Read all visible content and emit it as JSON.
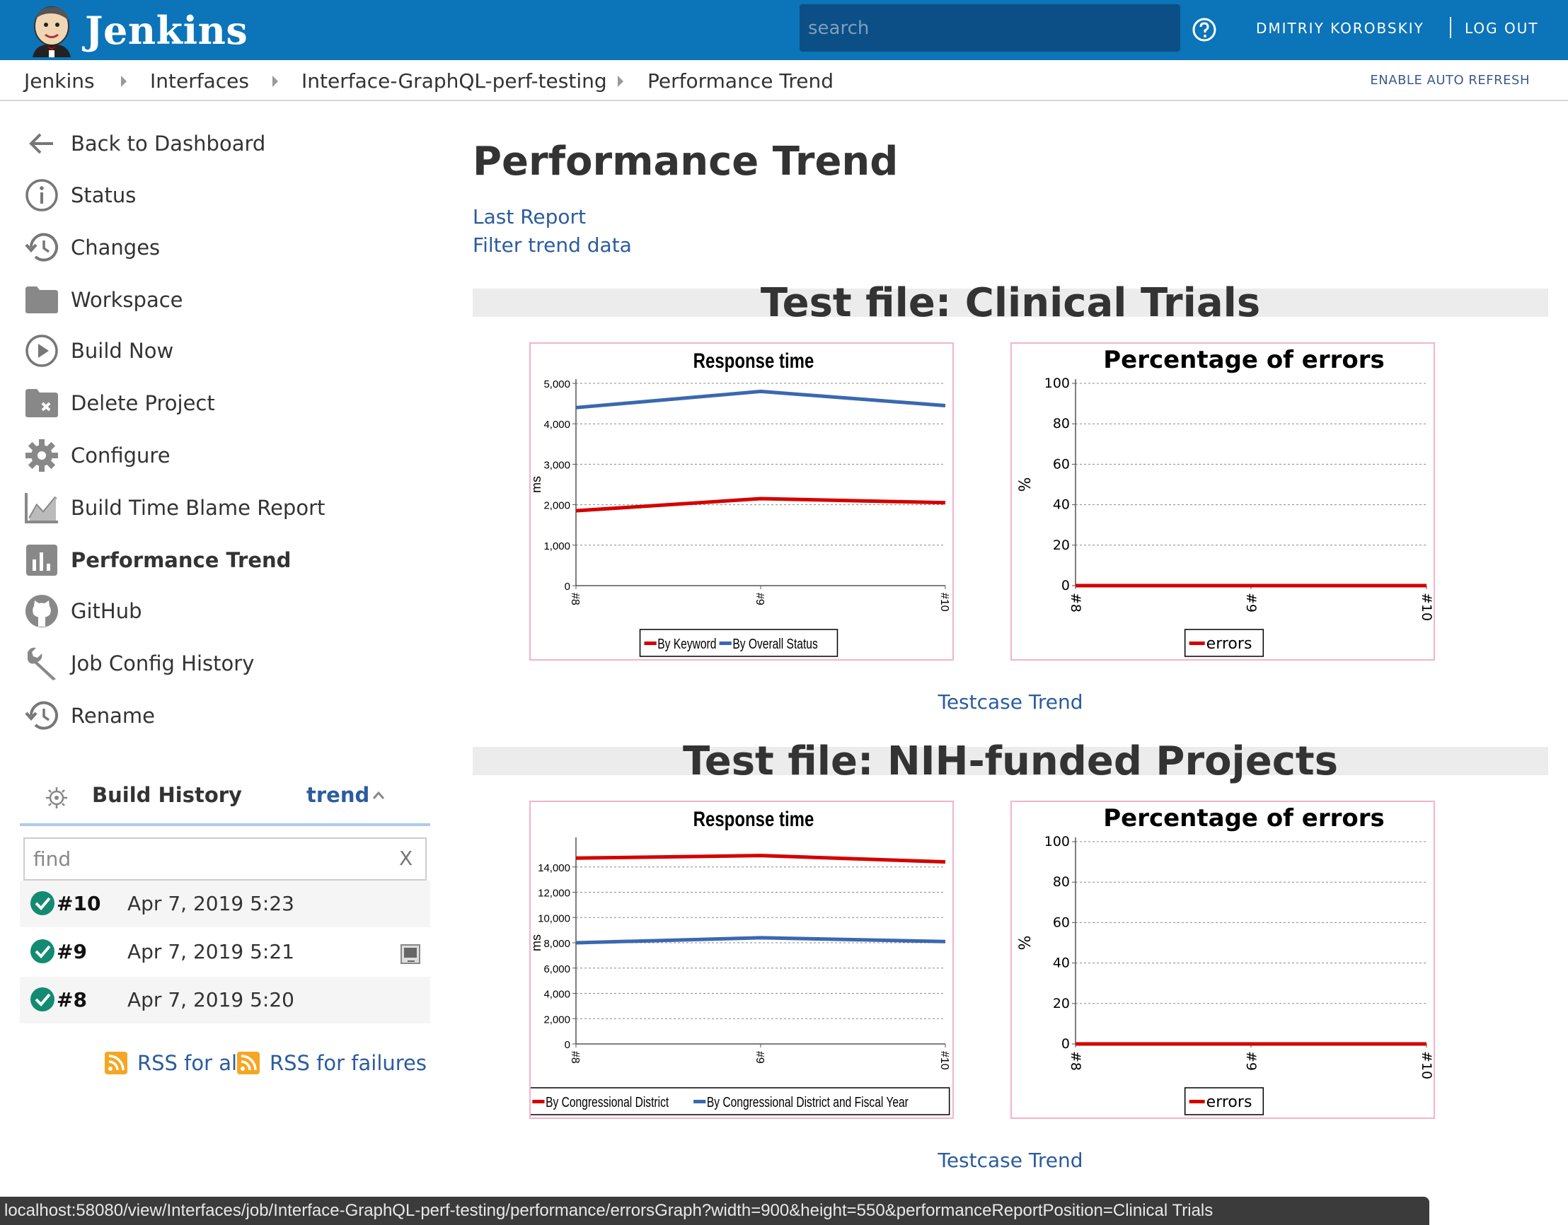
{
  "header": {
    "brand": "Jenkins",
    "search_placeholder": "search",
    "user": "DMITRIY KOROBSKIY",
    "logout": "LOG OUT"
  },
  "breadcrumb": {
    "items": [
      "Jenkins",
      "Interfaces",
      "Interface-GraphQL-perf-testing",
      "Performance Trend"
    ],
    "auto_refresh": "ENABLE AUTO REFRESH"
  },
  "sidebar": {
    "tasks": [
      {
        "label": "Back to Dashboard",
        "icon": "arrow-left-icon"
      },
      {
        "label": "Status",
        "icon": "info-icon"
      },
      {
        "label": "Changes",
        "icon": "history-icon"
      },
      {
        "label": "Workspace",
        "icon": "folder-icon"
      },
      {
        "label": "Build Now",
        "icon": "play-icon"
      },
      {
        "label": "Delete Project",
        "icon": "folder-delete-icon"
      },
      {
        "label": "Configure",
        "icon": "gear-icon"
      },
      {
        "label": "Build Time Blame Report",
        "icon": "line-chart-icon"
      },
      {
        "label": "Performance Trend",
        "icon": "bar-chart-icon"
      },
      {
        "label": "GitHub",
        "icon": "github-icon"
      },
      {
        "label": "Job Config History",
        "icon": "wrench-icon"
      },
      {
        "label": "Rename",
        "icon": "history-icon"
      }
    ],
    "build_history": {
      "title": "Build History",
      "trend": "trend",
      "find_placeholder": "find",
      "clear": "X",
      "builds": [
        {
          "number": "#10",
          "date": "Apr 7, 2019 5:23",
          "status": "success"
        },
        {
          "number": "#9",
          "date": "Apr 7, 2019 5:21",
          "status": "success"
        },
        {
          "number": "#8",
          "date": "Apr 7, 2019 5:20",
          "status": "success"
        }
      ],
      "rss_all": "RSS for all",
      "rss_failures": "RSS for failures"
    }
  },
  "main": {
    "title": "Performance Trend",
    "links": {
      "last_report": "Last Report",
      "filter": "Filter trend data"
    },
    "sections": [
      {
        "title": "Test file: Clinical Trials",
        "testcase_link": "Testcase Trend"
      },
      {
        "title": "Test file: NIH-funded Projects",
        "testcase_link": "Testcase Trend"
      }
    ]
  },
  "status_bar": "localhost:58080/view/Interfaces/job/Interface-GraphQL-perf-testing/performance/errorsGraph?width=900&height=550&performanceReportPosition=Clinical Trials",
  "colors": {
    "header": "#0c74b8",
    "link": "#2b5c9e",
    "series_red": "#d40000",
    "series_blue": "#3a68b0",
    "chart_border": "#f4b3cd"
  },
  "chart_data": [
    {
      "type": "line",
      "title": "Response time",
      "ylabel": "ms",
      "x": [
        "#8",
        "#9",
        "#10"
      ],
      "ylim": [
        0,
        5000
      ],
      "yticks": [
        0,
        1000,
        2000,
        3000,
        4000,
        5000
      ],
      "ytick_labels": [
        "0",
        "1,000",
        "2,000",
        "3,000",
        "4,000",
        "5,000"
      ],
      "series": [
        {
          "name": "By Keyword",
          "color": "#d40000",
          "values": [
            1850,
            2150,
            2050
          ]
        },
        {
          "name": "By Overall Status",
          "color": "#3a68b0",
          "values": [
            4400,
            4800,
            4450
          ]
        }
      ],
      "legend": "bottom"
    },
    {
      "type": "line",
      "title": "Percentage of errors",
      "ylabel": "%",
      "x": [
        "#8",
        "#9",
        "#10"
      ],
      "ylim": [
        0,
        100
      ],
      "yticks": [
        0,
        20,
        40,
        60,
        80,
        100
      ],
      "ytick_labels": [
        "0",
        "20",
        "40",
        "60",
        "80",
        "100"
      ],
      "series": [
        {
          "name": "errors",
          "color": "#d40000",
          "values": [
            0,
            0,
            0
          ]
        }
      ],
      "legend": "bottom"
    },
    {
      "type": "line",
      "title": "Response time",
      "ylabel": "ms",
      "x": [
        "#8",
        "#9",
        "#10"
      ],
      "ylim": [
        0,
        16000
      ],
      "yticks": [
        0,
        2000,
        4000,
        6000,
        8000,
        10000,
        12000,
        14000
      ],
      "ytick_labels": [
        "0",
        "2,000",
        "4,000",
        "6,000",
        "8,000",
        "10,000",
        "12,000",
        "14,000"
      ],
      "series": [
        {
          "name": "By Congressional District",
          "color": "#d40000",
          "values": [
            14700,
            14900,
            14400
          ]
        },
        {
          "name": "By Congressional District and Fiscal Year",
          "color": "#3a68b0",
          "values": [
            8000,
            8400,
            8100
          ]
        }
      ],
      "legend": "bottom"
    },
    {
      "type": "line",
      "title": "Percentage of errors",
      "ylabel": "%",
      "x": [
        "#8",
        "#9",
        "#10"
      ],
      "ylim": [
        0,
        100
      ],
      "yticks": [
        0,
        20,
        40,
        60,
        80,
        100
      ],
      "ytick_labels": [
        "0",
        "20",
        "40",
        "60",
        "80",
        "100"
      ],
      "series": [
        {
          "name": "errors",
          "color": "#d40000",
          "values": [
            0,
            0,
            0
          ]
        }
      ],
      "legend": "bottom"
    }
  ]
}
